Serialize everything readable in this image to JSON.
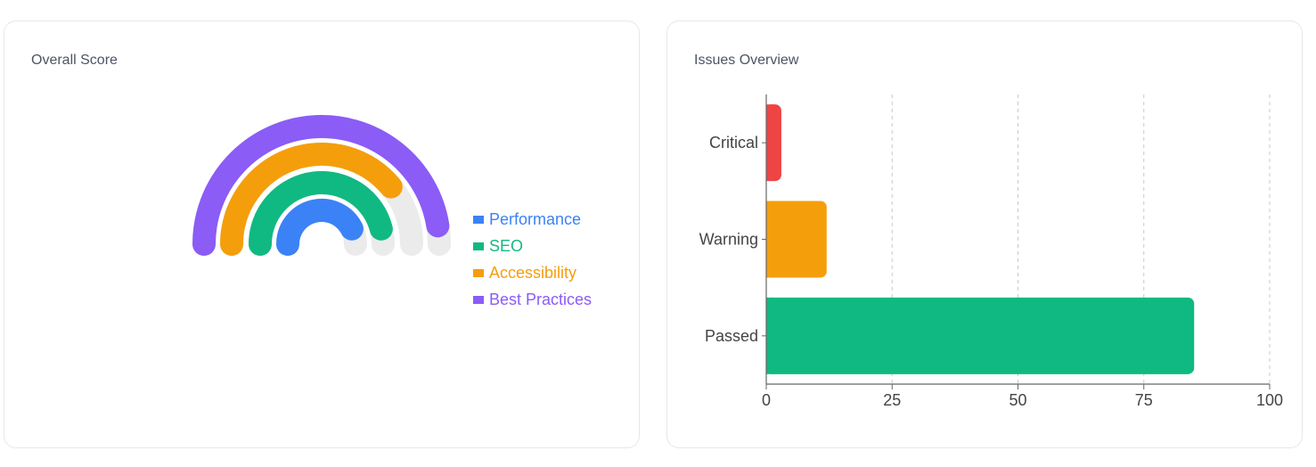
{
  "score_card": {
    "title": "Overall Score"
  },
  "issues_card": {
    "title": "Issues Overview"
  },
  "colors": {
    "track": "#ebebeb",
    "performance": "#3b82f6",
    "seo": "#10b981",
    "accessibility": "#f59e0b",
    "best_practices": "#8b5cf6",
    "critical": "#ef4444",
    "warning": "#f59e0b",
    "passed": "#10b981"
  },
  "chart_data": [
    {
      "type": "radialBar",
      "title": "",
      "angle_range_degrees": [
        -90,
        90
      ],
      "max": 100,
      "legend_position": "right",
      "series": [
        {
          "name": "Performance",
          "value": 85,
          "color": "#3b82f6"
        },
        {
          "name": "SEO",
          "value": 92,
          "color": "#10b981"
        },
        {
          "name": "Accessibility",
          "value": 78,
          "color": "#f59e0b"
        },
        {
          "name": "Best Practices",
          "value": 95,
          "color": "#8b5cf6"
        }
      ]
    },
    {
      "type": "bar",
      "orientation": "horizontal",
      "title": "",
      "categories": [
        "Critical",
        "Warning",
        "Passed"
      ],
      "values": [
        3,
        12,
        85
      ],
      "colors": [
        "#ef4444",
        "#f59e0b",
        "#10b981"
      ],
      "xlim": [
        0,
        100
      ],
      "xticks": [
        "0",
        "25",
        "50",
        "75",
        "100"
      ],
      "grid": true
    }
  ]
}
